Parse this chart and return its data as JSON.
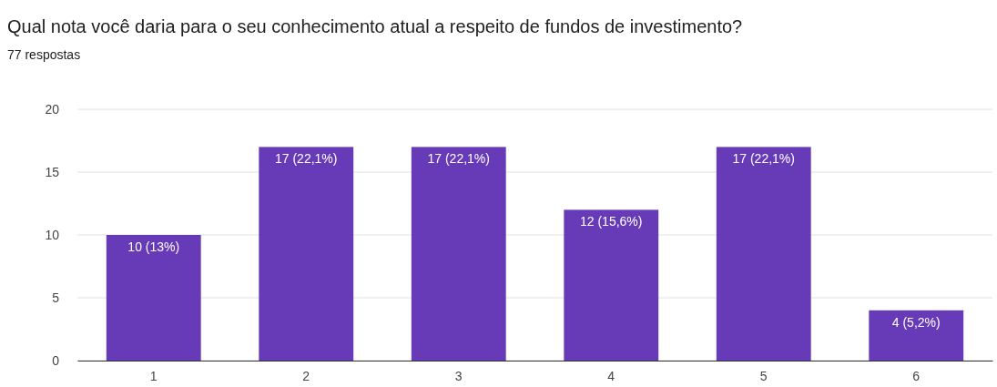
{
  "chart_data": {
    "type": "bar",
    "title": "Qual nota você daria para o seu conhecimento atual a respeito de fundos de investimento?",
    "subtitle": "77 respostas",
    "categories": [
      "1",
      "2",
      "3",
      "4",
      "5",
      "6"
    ],
    "values": [
      10,
      17,
      17,
      12,
      17,
      4
    ],
    "value_labels": [
      "10 (13%)",
      "17 (22,1%)",
      "17 (22,1%)",
      "12 (15,6%)",
      "17 (22,1%)",
      "4 (5,2%)"
    ],
    "color": "#673ab7",
    "ylim": [
      0,
      20
    ],
    "yticks": [
      0,
      5,
      10,
      15,
      20
    ],
    "grid": "y"
  }
}
